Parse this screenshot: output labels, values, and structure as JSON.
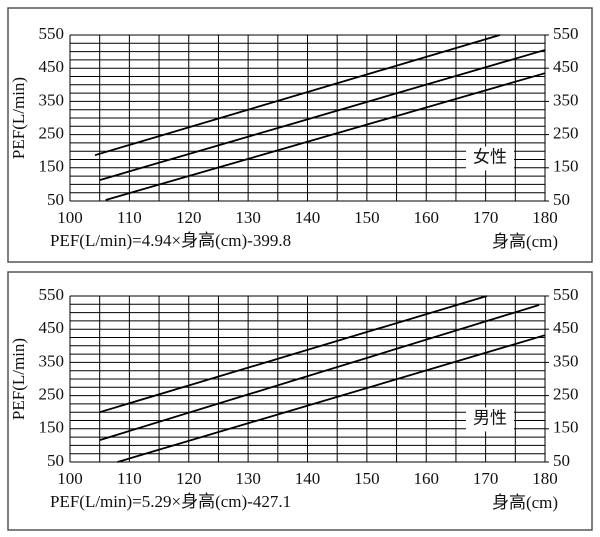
{
  "chart_data": [
    {
      "type": "line",
      "annotation": "女性",
      "formula": "PEF(L/min)=4.94×身高(cm)-399.8",
      "x_label": "身高(cm)",
      "y_label": "PEF(L/min)",
      "xlim": [
        100,
        180
      ],
      "xticks": [
        100,
        110,
        120,
        130,
        140,
        150,
        160,
        170,
        180
      ],
      "ylim": [
        50,
        550
      ],
      "yticks": [
        50,
        150,
        250,
        350,
        450,
        550
      ],
      "y2lim": [
        50,
        550
      ],
      "y2ticks": [
        50,
        150,
        250,
        350,
        450,
        550
      ],
      "grid": true,
      "series": [
        {
          "color": "#000000",
          "x": [
            104.2,
            172.4
          ],
          "values": [
            188,
            550
          ]
        },
        {
          "color": "#000000",
          "x": [
            105,
            180
          ],
          "values": [
            113,
            505
          ]
        },
        {
          "color": "#000000",
          "x": [
            106,
            180
          ],
          "values": [
            53,
            435
          ]
        }
      ]
    },
    {
      "type": "line",
      "annotation": "男性",
      "formula": "PEF(L/min)=5.29×身高(cm)-427.1",
      "x_label": "身高(cm)",
      "y_label": "PEF(L/min)",
      "xlim": [
        100,
        180
      ],
      "xticks": [
        100,
        110,
        120,
        130,
        140,
        150,
        160,
        170,
        180
      ],
      "ylim": [
        50,
        550
      ],
      "yticks": [
        50,
        150,
        250,
        350,
        450,
        550
      ],
      "y2lim": [
        50,
        550
      ],
      "y2ticks": [
        50,
        150,
        250,
        350,
        450,
        550
      ],
      "grid": true,
      "series": [
        {
          "color": "#000000",
          "x": [
            105,
            170.2
          ],
          "values": [
            200,
            550
          ]
        },
        {
          "color": "#000000",
          "x": [
            105,
            179
          ],
          "values": [
            116,
            523
          ]
        },
        {
          "color": "#000000",
          "x": [
            108,
            180
          ],
          "values": [
            50,
            432
          ]
        }
      ]
    }
  ]
}
